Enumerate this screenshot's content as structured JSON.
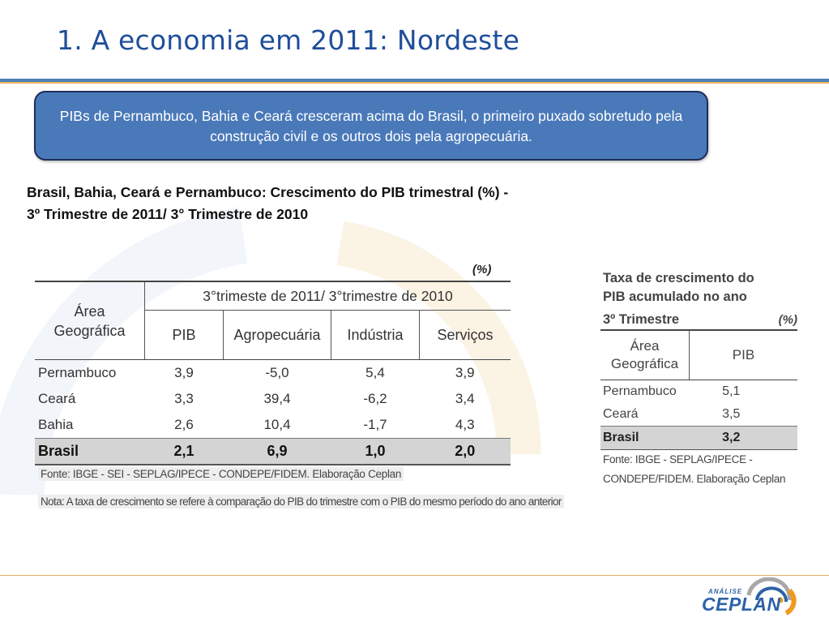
{
  "slide": {
    "title": "1. A economia em 2011: Nordeste",
    "callout": "PIBs de Pernambuco, Bahia e Ceará  cresceram  acima do Brasil, o primeiro puxado sobretudo pela construção civil e os outros dois pela agropecuária.",
    "subtitle_line1": "Brasil, Bahia, Ceará e Pernambuco: Crescimento do PIB trimestral  (%) -",
    "subtitle_line2": "3º Trimestre de 2011/ 3°  Trimestre de 2010"
  },
  "table1": {
    "unit": "(%)",
    "header_area_line1": "Área",
    "header_area_line2": "Geográfica",
    "header_period": "3°trimeste de 2011/ 3°trimestre de 2010",
    "columns": [
      "PIB",
      "Agropecuária",
      "Indústria",
      "Serviços"
    ],
    "rows": [
      {
        "name": "Pernambuco",
        "values": [
          "3,9",
          "-5,0",
          "5,4",
          "3,9"
        ]
      },
      {
        "name": "Ceará",
        "values": [
          "3,3",
          "39,4",
          "-6,2",
          "3,4"
        ]
      },
      {
        "name": "Bahia",
        "values": [
          "2,6",
          "10,4",
          "-1,7",
          "4,3"
        ]
      }
    ],
    "total": {
      "name": "Brasil",
      "values": [
        "2,1",
        "6,9",
        "1,0",
        "2,0"
      ]
    },
    "source": "Fonte: IBGE - SEI - SEPLAG/IPECE - CONDEPE/FIDEM. Elaboração Ceplan",
    "note": "Nota: A taxa de crescimento se refere à comparação do PIB do trimestre com o PIB do mesmo período do ano anterior"
  },
  "table2": {
    "title_line1": "Taxa de crescimento do",
    "title_line2": "PIB acumulado no ano",
    "title_line3": "3º Trimestre",
    "unit": "(%)",
    "header_area_line1": "Área",
    "header_area_line2": "Geográfica",
    "header_pib": "PIB",
    "rows": [
      {
        "name": "Pernambuco",
        "value": "5,1"
      },
      {
        "name": "Ceará",
        "value": "3,5"
      }
    ],
    "total": {
      "name": "Brasil",
      "value": "3,2"
    },
    "source_line1": "Fonte: IBGE - SEPLAG/IPECE -",
    "source_line2": "CONDEPE/FIDEM. Elaboração Ceplan"
  },
  "logo": {
    "small": "ANÁLISE",
    "word": "CEPLAN",
    "colors": {
      "blue": "#2d62a8",
      "orange": "#f09a1e",
      "gray": "#a8a8a8"
    }
  }
}
